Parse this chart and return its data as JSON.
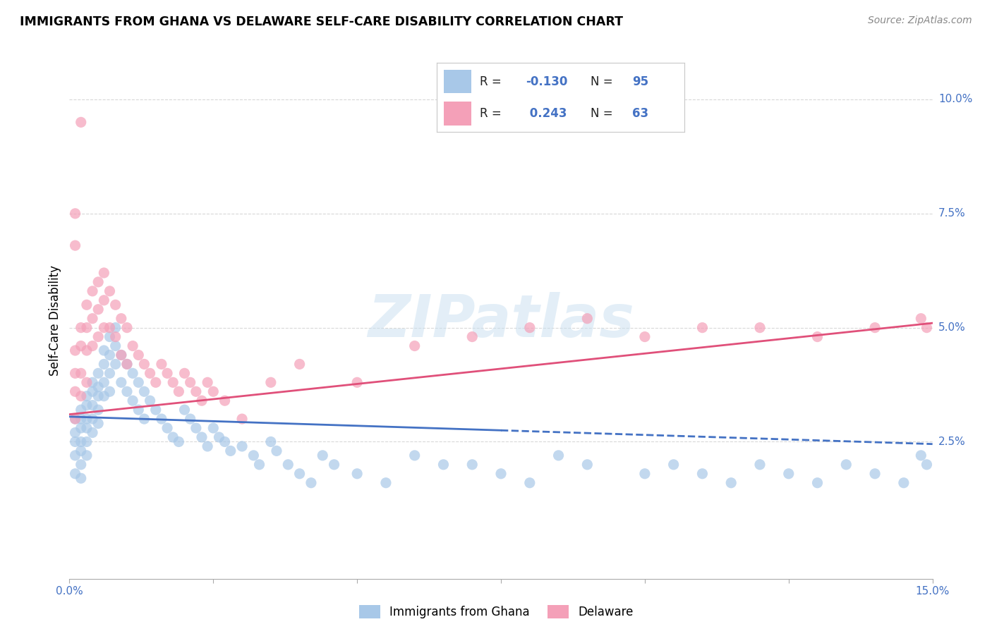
{
  "title": "IMMIGRANTS FROM GHANA VS DELAWARE SELF-CARE DISABILITY CORRELATION CHART",
  "source": "Source: ZipAtlas.com",
  "ylabel": "Self-Care Disability",
  "xlim": [
    0.0,
    0.15
  ],
  "ylim": [
    -0.005,
    0.108
  ],
  "yticks_right": [
    0.025,
    0.05,
    0.075,
    0.1
  ],
  "ytick_labels_right": [
    "2.5%",
    "5.0%",
    "7.5%",
    "10.0%"
  ],
  "legend_R1": "-0.130",
  "legend_N1": "95",
  "legend_R2": "0.243",
  "legend_N2": "63",
  "color_ghana": "#a8c8e8",
  "color_delaware": "#f4a0b8",
  "color_blue": "#4472c4",
  "color_pink": "#e0507a",
  "color_axis_label": "#4472c4",
  "ghana_trend_y_start": 0.0305,
  "ghana_trend_y_end": 0.0245,
  "ghana_trend_solid_end_x": 0.075,
  "ghana_trend_solid_end_y": 0.0275,
  "delaware_trend_y_start": 0.031,
  "delaware_trend_y_end": 0.051,
  "background_color": "#ffffff",
  "watermark_text": "ZIPatlas",
  "grid_color": "#d8d8d8",
  "ghana_x": [
    0.001,
    0.001,
    0.001,
    0.001,
    0.001,
    0.002,
    0.002,
    0.002,
    0.002,
    0.002,
    0.002,
    0.002,
    0.003,
    0.003,
    0.003,
    0.003,
    0.003,
    0.003,
    0.004,
    0.004,
    0.004,
    0.004,
    0.004,
    0.005,
    0.005,
    0.005,
    0.005,
    0.005,
    0.006,
    0.006,
    0.006,
    0.006,
    0.007,
    0.007,
    0.007,
    0.007,
    0.008,
    0.008,
    0.008,
    0.009,
    0.009,
    0.01,
    0.01,
    0.011,
    0.011,
    0.012,
    0.012,
    0.013,
    0.013,
    0.014,
    0.015,
    0.016,
    0.017,
    0.018,
    0.019,
    0.02,
    0.021,
    0.022,
    0.023,
    0.024,
    0.025,
    0.026,
    0.027,
    0.028,
    0.03,
    0.032,
    0.033,
    0.035,
    0.036,
    0.038,
    0.04,
    0.042,
    0.044,
    0.046,
    0.05,
    0.055,
    0.06,
    0.065,
    0.07,
    0.075,
    0.08,
    0.085,
    0.09,
    0.1,
    0.105,
    0.11,
    0.115,
    0.12,
    0.125,
    0.13,
    0.135,
    0.14,
    0.145,
    0.148,
    0.149
  ],
  "ghana_y": [
    0.025,
    0.03,
    0.027,
    0.022,
    0.018,
    0.032,
    0.03,
    0.028,
    0.025,
    0.023,
    0.02,
    0.017,
    0.035,
    0.033,
    0.03,
    0.028,
    0.025,
    0.022,
    0.038,
    0.036,
    0.033,
    0.03,
    0.027,
    0.04,
    0.037,
    0.035,
    0.032,
    0.029,
    0.045,
    0.042,
    0.038,
    0.035,
    0.048,
    0.044,
    0.04,
    0.036,
    0.05,
    0.046,
    0.042,
    0.044,
    0.038,
    0.042,
    0.036,
    0.04,
    0.034,
    0.038,
    0.032,
    0.036,
    0.03,
    0.034,
    0.032,
    0.03,
    0.028,
    0.026,
    0.025,
    0.032,
    0.03,
    0.028,
    0.026,
    0.024,
    0.028,
    0.026,
    0.025,
    0.023,
    0.024,
    0.022,
    0.02,
    0.025,
    0.023,
    0.02,
    0.018,
    0.016,
    0.022,
    0.02,
    0.018,
    0.016,
    0.022,
    0.02,
    0.02,
    0.018,
    0.016,
    0.022,
    0.02,
    0.018,
    0.02,
    0.018,
    0.016,
    0.02,
    0.018,
    0.016,
    0.02,
    0.018,
    0.016,
    0.022,
    0.02
  ],
  "delaware_x": [
    0.001,
    0.001,
    0.001,
    0.001,
    0.002,
    0.002,
    0.002,
    0.002,
    0.003,
    0.003,
    0.003,
    0.003,
    0.004,
    0.004,
    0.004,
    0.005,
    0.005,
    0.005,
    0.006,
    0.006,
    0.006,
    0.007,
    0.007,
    0.008,
    0.008,
    0.009,
    0.009,
    0.01,
    0.01,
    0.011,
    0.012,
    0.013,
    0.014,
    0.015,
    0.016,
    0.017,
    0.018,
    0.019,
    0.02,
    0.021,
    0.022,
    0.023,
    0.024,
    0.025,
    0.027,
    0.03,
    0.035,
    0.04,
    0.05,
    0.06,
    0.07,
    0.08,
    0.09,
    0.1,
    0.11,
    0.12,
    0.13,
    0.14,
    0.148,
    0.149,
    0.002,
    0.001,
    0.001
  ],
  "delaware_y": [
    0.045,
    0.04,
    0.036,
    0.03,
    0.05,
    0.046,
    0.04,
    0.035,
    0.055,
    0.05,
    0.045,
    0.038,
    0.058,
    0.052,
    0.046,
    0.06,
    0.054,
    0.048,
    0.062,
    0.056,
    0.05,
    0.058,
    0.05,
    0.055,
    0.048,
    0.052,
    0.044,
    0.05,
    0.042,
    0.046,
    0.044,
    0.042,
    0.04,
    0.038,
    0.042,
    0.04,
    0.038,
    0.036,
    0.04,
    0.038,
    0.036,
    0.034,
    0.038,
    0.036,
    0.034,
    0.03,
    0.038,
    0.042,
    0.038,
    0.046,
    0.048,
    0.05,
    0.052,
    0.048,
    0.05,
    0.05,
    0.048,
    0.05,
    0.052,
    0.05,
    0.095,
    0.075,
    0.068
  ]
}
